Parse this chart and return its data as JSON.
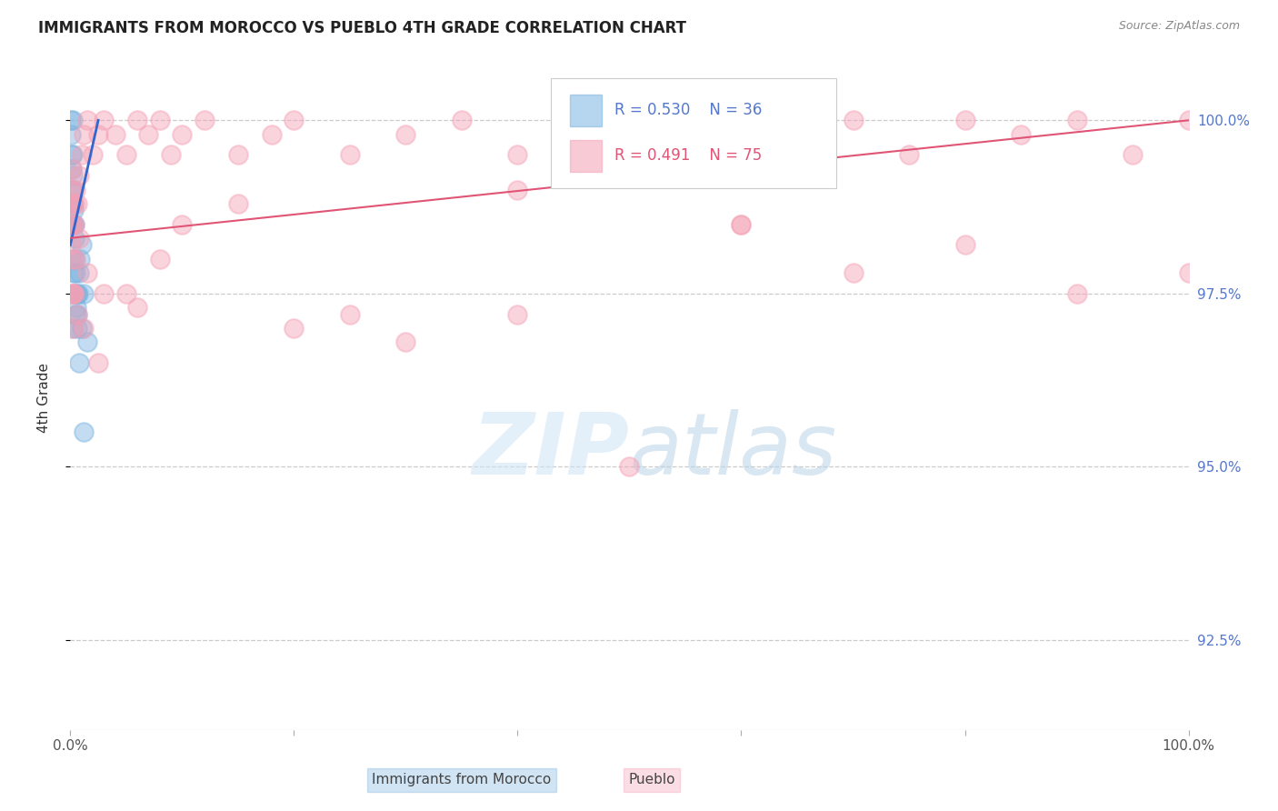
{
  "title": "IMMIGRANTS FROM MOROCCO VS PUEBLO 4TH GRADE CORRELATION CHART",
  "source": "Source: ZipAtlas.com",
  "ylabel": "4th Grade",
  "legend_blue_label": "Immigrants from Morocco",
  "legend_pink_label": "Pueblo",
  "legend_blue_R": "R = 0.530",
  "legend_blue_N": "N = 36",
  "legend_pink_R": "R = 0.491",
  "legend_pink_N": "N = 75",
  "blue_color": "#7ab3e0",
  "pink_color": "#f4a0b5",
  "blue_line_color": "#3366cc",
  "pink_line_color": "#e05575",
  "right_tick_color": "#5577cc",
  "yticks": [
    92.5,
    95.0,
    97.5,
    100.0
  ],
  "ylim": [
    91.2,
    100.8
  ],
  "xlim": [
    0,
    100
  ],
  "blue_points_x": [
    0.05,
    0.08,
    0.1,
    0.12,
    0.15,
    0.18,
    0.2,
    0.22,
    0.25,
    0.28,
    0.3,
    0.35,
    0.4,
    0.45,
    0.5,
    0.55,
    0.6,
    0.65,
    0.7,
    0.8,
    0.9,
    1.0,
    1.2,
    1.5,
    0.1,
    0.15,
    0.2,
    0.25,
    0.3,
    0.4,
    0.5,
    0.6,
    0.8,
    1.0,
    1.2,
    0.18
  ],
  "blue_points_y": [
    100.0,
    99.8,
    99.5,
    99.3,
    99.0,
    98.8,
    100.0,
    99.5,
    99.2,
    98.7,
    98.5,
    98.3,
    98.0,
    97.8,
    97.5,
    97.3,
    97.0,
    97.2,
    97.5,
    97.8,
    98.0,
    98.2,
    97.5,
    96.8,
    98.5,
    98.0,
    99.0,
    97.0,
    97.8,
    98.5,
    97.2,
    97.5,
    96.5,
    97.0,
    95.5,
    98.8
  ],
  "pink_points_x": [
    0.05,
    0.08,
    0.1,
    0.12,
    0.15,
    0.2,
    0.25,
    0.3,
    0.35,
    0.4,
    0.5,
    0.6,
    0.8,
    1.0,
    1.2,
    1.5,
    2.0,
    2.5,
    3.0,
    4.0,
    5.0,
    6.0,
    7.0,
    8.0,
    9.0,
    10.0,
    12.0,
    15.0,
    18.0,
    20.0,
    25.0,
    30.0,
    35.0,
    40.0,
    45.0,
    50.0,
    55.0,
    60.0,
    65.0,
    70.0,
    75.0,
    80.0,
    85.0,
    90.0,
    95.0,
    100.0,
    0.1,
    0.2,
    0.3,
    0.5,
    0.8,
    1.5,
    3.0,
    6.0,
    10.0,
    20.0,
    30.0,
    40.0,
    50.0,
    60.0,
    70.0,
    80.0,
    90.0,
    100.0,
    0.15,
    0.25,
    0.6,
    1.2,
    2.5,
    5.0,
    8.0,
    15.0,
    25.0,
    40.0,
    60.0
  ],
  "pink_points_y": [
    98.5,
    98.2,
    99.0,
    98.8,
    99.3,
    98.5,
    98.0,
    97.5,
    98.8,
    98.5,
    99.0,
    98.8,
    99.2,
    99.5,
    99.8,
    100.0,
    99.5,
    99.8,
    100.0,
    99.8,
    99.5,
    100.0,
    99.8,
    100.0,
    99.5,
    99.8,
    100.0,
    99.5,
    99.8,
    100.0,
    99.5,
    99.8,
    100.0,
    99.5,
    99.8,
    100.0,
    99.5,
    100.0,
    99.8,
    100.0,
    99.5,
    100.0,
    99.8,
    100.0,
    99.5,
    100.0,
    97.5,
    97.0,
    97.5,
    98.0,
    98.3,
    97.8,
    97.5,
    97.3,
    98.5,
    97.0,
    96.8,
    97.2,
    95.0,
    98.5,
    97.8,
    98.2,
    97.5,
    97.8,
    98.8,
    97.5,
    97.2,
    97.0,
    96.5,
    97.5,
    98.0,
    98.8,
    97.2,
    99.0,
    98.5
  ],
  "blue_line_x": [
    0,
    2.5
  ],
  "blue_line_y": [
    98.2,
    100.0
  ],
  "pink_line_x": [
    0,
    100
  ],
  "pink_line_y": [
    98.3,
    100.0
  ]
}
